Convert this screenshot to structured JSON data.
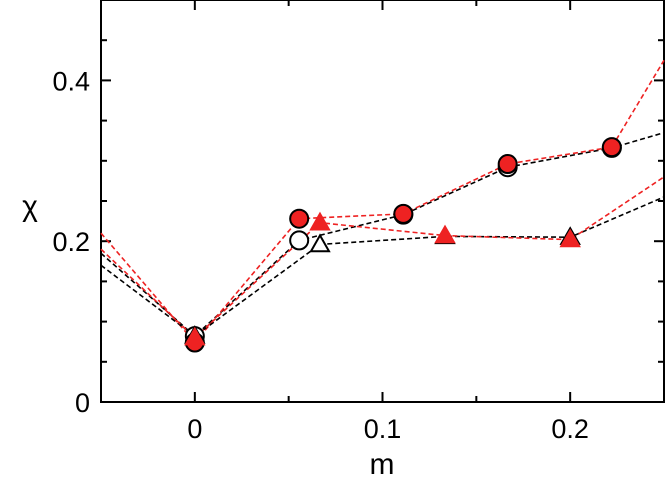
{
  "chart_data": {
    "type": "scatter",
    "xlabel": "m",
    "ylabel": "χ",
    "xlim": [
      -0.05,
      0.25
    ],
    "ylim": [
      0,
      0.5
    ],
    "xticks": [
      0,
      0.1,
      0.2
    ],
    "xtick_labels": [
      "0",
      "0.1",
      "0.2"
    ],
    "yticks": [
      0,
      0.2,
      0.4
    ],
    "ytick_labels": [
      "0",
      "0.2",
      "0.4"
    ],
    "grid": false,
    "legend": "none",
    "series": [
      {
        "marker": "circle",
        "filled": false,
        "color": "#000000",
        "x": [
          0,
          0.0556,
          0.1111,
          0.1667,
          0.2222
        ],
        "y": [
          0.082,
          0.201,
          0.233,
          0.292,
          0.316
        ],
        "ext_left": [
          -0.05,
          0.185
        ],
        "ext_right": [
          0.25,
          0.335
        ]
      },
      {
        "marker": "circle",
        "filled": true,
        "color": "#ee2222",
        "x": [
          0,
          0.0556,
          0.1111,
          0.1667,
          0.2222
        ],
        "y": [
          0.074,
          0.228,
          0.234,
          0.296,
          0.317
        ],
        "ext_left": [
          -0.05,
          0.21
        ],
        "ext_right": [
          0.25,
          0.425
        ]
      },
      {
        "marker": "triangle",
        "filled": false,
        "color": "#000000",
        "x": [
          0,
          0.0667,
          0.1333,
          0.2
        ],
        "y": [
          0.082,
          0.196,
          0.206,
          0.205
        ],
        "ext_left": [
          -0.05,
          0.17
        ],
        "ext_right": [
          0.25,
          0.255
        ]
      },
      {
        "marker": "triangle",
        "filled": true,
        "color": "#ee2222",
        "x": [
          0,
          0.0667,
          0.1333,
          0.2
        ],
        "y": [
          0.08,
          0.223,
          0.207,
          0.202
        ],
        "ext_left": [
          -0.05,
          0.19
        ],
        "ext_right": [
          0.25,
          0.28
        ]
      }
    ]
  }
}
